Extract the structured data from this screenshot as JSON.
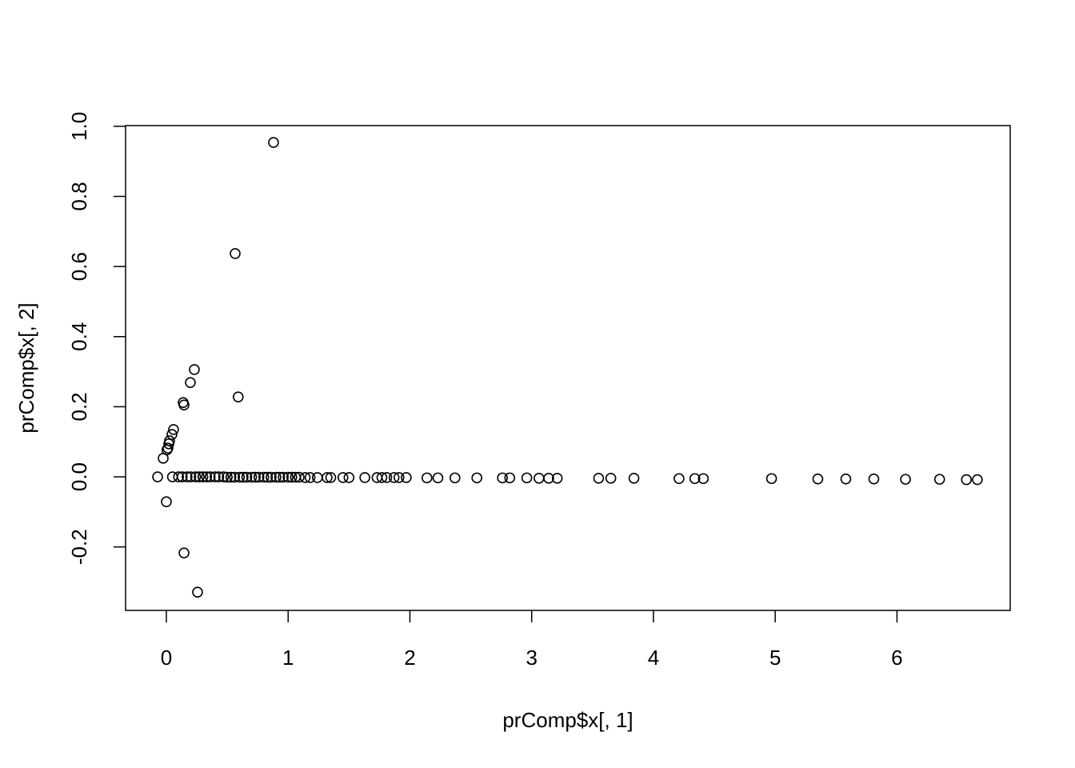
{
  "chart_data": {
    "type": "scatter",
    "xlabel": "prComp$x[, 1]",
    "ylabel": "prComp$x[, 2]",
    "x": [
      0.88,
      0.565,
      0.59,
      0.23,
      0.197,
      0.138,
      0.145,
      0.059,
      0.046,
      0.026,
      0.02,
      0.013,
      0.005,
      -0.026,
      -0.072,
      0.0,
      0.145,
      0.256,
      0.05,
      0.1,
      0.13,
      0.17,
      0.2,
      0.24,
      0.27,
      0.3,
      0.33,
      0.36,
      0.4,
      0.43,
      0.47,
      0.5,
      0.53,
      0.56,
      0.6,
      0.63,
      0.66,
      0.7,
      0.73,
      0.76,
      0.8,
      0.83,
      0.86,
      0.9,
      0.93,
      0.96,
      1.0,
      1.03,
      1.06,
      1.09,
      1.14,
      1.18,
      1.24,
      1.32,
      1.35,
      1.45,
      1.5,
      1.63,
      1.73,
      1.77,
      1.81,
      1.87,
      1.91,
      1.97,
      2.14,
      2.23,
      2.37,
      2.55,
      2.76,
      2.82,
      2.96,
      3.06,
      3.14,
      3.21,
      3.55,
      3.65,
      3.84,
      4.21,
      4.34,
      4.41,
      4.97,
      5.35,
      5.58,
      5.81,
      6.07,
      6.35,
      6.57,
      6.66
    ],
    "y": [
      0.954,
      0.637,
      0.228,
      0.306,
      0.269,
      0.212,
      0.205,
      0.135,
      0.121,
      0.103,
      0.094,
      0.082,
      0.077,
      0.053,
      0.0,
      -0.071,
      -0.217,
      -0.329,
      0.0,
      0.0,
      0.0,
      0.0,
      0.0,
      0.0,
      0.0,
      0.0,
      0.0,
      0.0,
      0.0,
      0.0,
      0.0,
      -0.001,
      -0.001,
      -0.001,
      -0.001,
      -0.001,
      -0.001,
      -0.001,
      -0.001,
      -0.001,
      -0.001,
      -0.001,
      -0.001,
      -0.001,
      -0.001,
      -0.001,
      -0.001,
      -0.001,
      -0.001,
      -0.001,
      -0.002,
      -0.002,
      -0.002,
      -0.002,
      -0.002,
      -0.002,
      -0.002,
      -0.002,
      -0.002,
      -0.002,
      -0.002,
      -0.002,
      -0.002,
      -0.002,
      -0.003,
      -0.003,
      -0.003,
      -0.003,
      -0.003,
      -0.003,
      -0.003,
      -0.004,
      -0.004,
      -0.004,
      -0.004,
      -0.004,
      -0.004,
      -0.005,
      -0.005,
      -0.005,
      -0.005,
      -0.006,
      -0.006,
      -0.006,
      -0.007,
      -0.007,
      -0.008,
      -0.008
    ],
    "xlim": [
      -0.335,
      6.93
    ],
    "ylim": [
      -0.381,
      1.002
    ],
    "xticks": [
      0,
      1,
      2,
      3,
      4,
      5,
      6
    ],
    "yticks": [
      -0.2,
      {
        "value": 0,
        "label": "0.0"
      },
      0.2,
      0.4,
      0.6,
      0.8,
      {
        "value": 1,
        "label": "1.0"
      }
    ],
    "color": "#000000",
    "grid": false
  }
}
